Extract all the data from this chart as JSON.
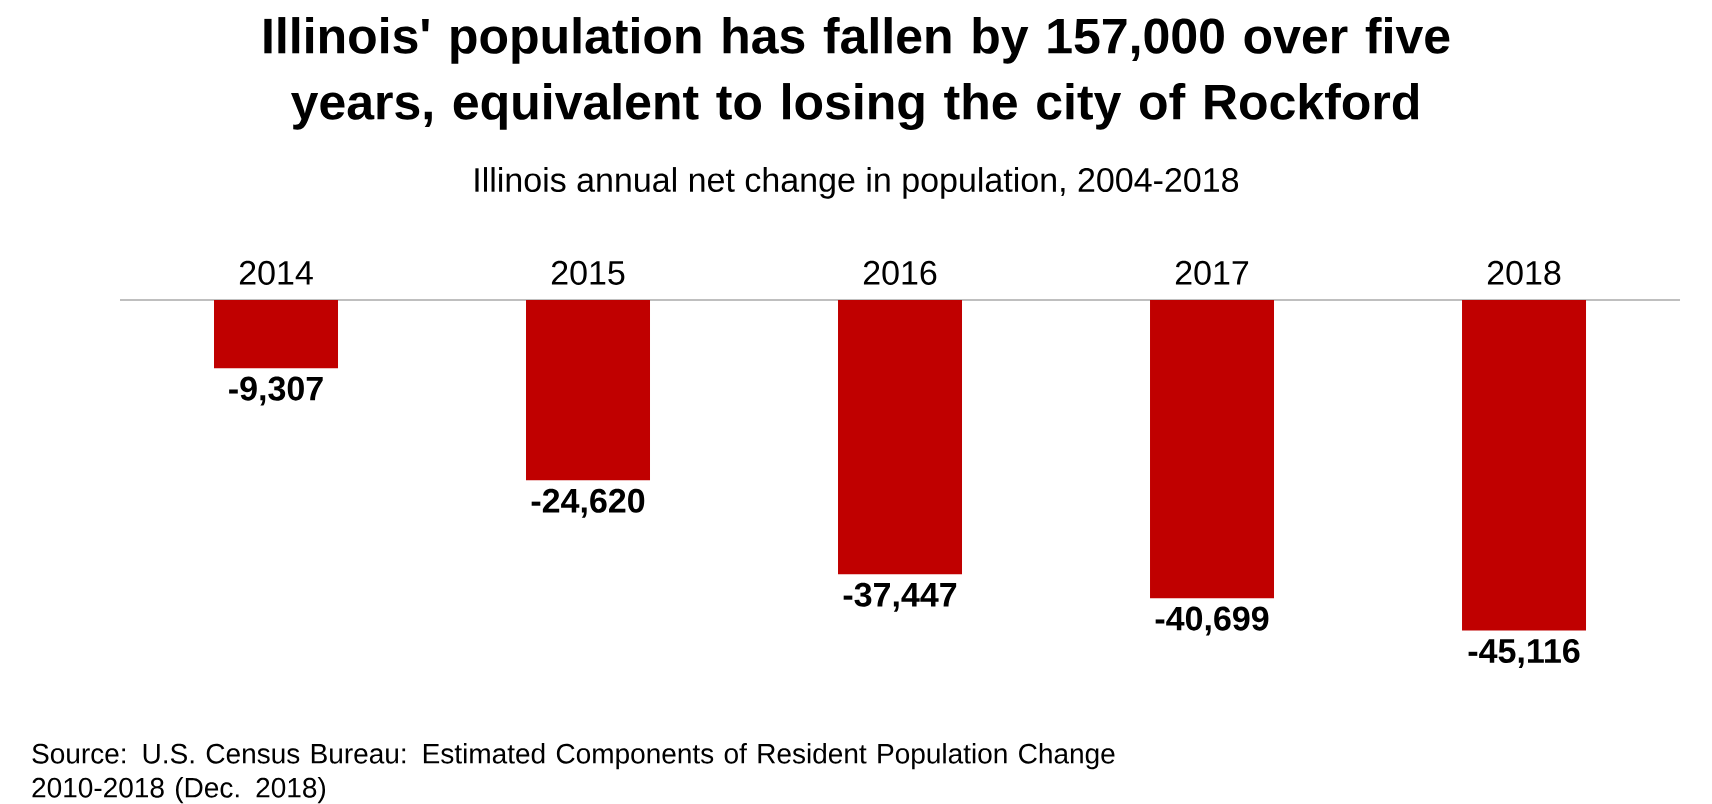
{
  "chart_data": {
    "type": "bar",
    "title": "Illinois' population has fallen by 157,000 over five years, equivalent to losing the city of Rockford",
    "subtitle": "Illinois annual net change in population, 2004-2018",
    "categories": [
      "2014",
      "2015",
      "2016",
      "2017",
      "2018"
    ],
    "values": [
      -9307,
      -24620,
      -37447,
      -40699,
      -45116
    ],
    "color": "#c00000",
    "value_labels": [
      "-9,307",
      "-24,620",
      "-37,447",
      "-40,699",
      "-45,116"
    ],
    "annotations": [
      "Source: U.S. Census Bureau: Estimated Components of Resident Population Change 2010-2018 (Dec. 2018)"
    ]
  }
}
